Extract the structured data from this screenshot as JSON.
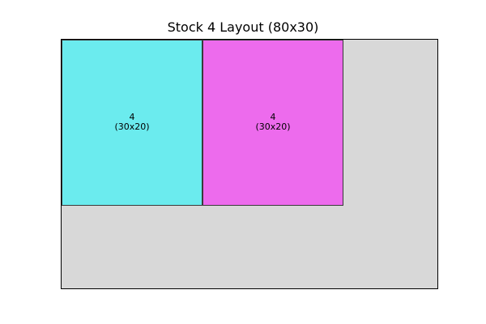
{
  "title": "Stock 4 Layout (80x30)",
  "stock": {
    "width": 80,
    "height": 30,
    "color": "#d8d8d8"
  },
  "pieces": [
    {
      "id_label": "4",
      "size_label": "(30x20)",
      "x": 0,
      "y": 0,
      "width": 30,
      "height": 20,
      "color": "#6bebee"
    },
    {
      "id_label": "4",
      "size_label": "(30x20)",
      "x": 30,
      "y": 0,
      "width": 30,
      "height": 20,
      "color": "#ed6bed"
    }
  ]
}
